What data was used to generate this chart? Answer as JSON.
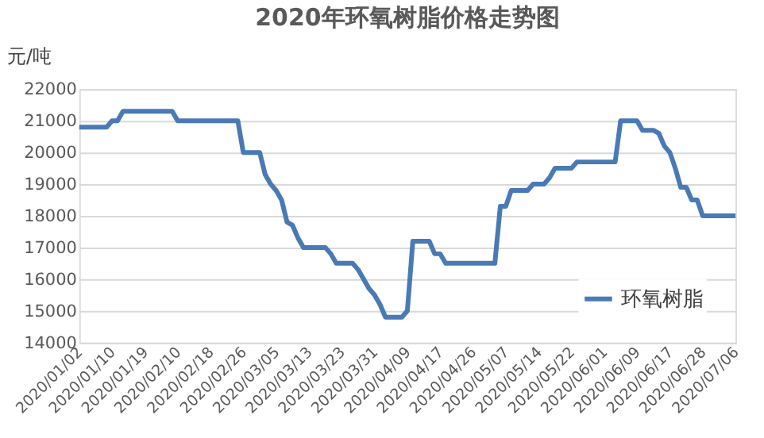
{
  "chart_data": {
    "type": "line",
    "title": "2020年环氧树脂价格走势图",
    "ylabel": "元/吨",
    "categories": [
      "2020/01/02",
      null,
      null,
      null,
      null,
      null,
      "2020/01/10",
      null,
      null,
      null,
      null,
      null,
      "2020/01/19",
      null,
      null,
      null,
      null,
      null,
      "2020/02/10",
      null,
      null,
      null,
      null,
      null,
      "2020/02/18",
      null,
      null,
      null,
      null,
      null,
      "2020/02/26",
      null,
      null,
      null,
      null,
      null,
      "2020/03/05",
      null,
      null,
      null,
      null,
      null,
      "2020/03/13",
      null,
      null,
      null,
      null,
      null,
      "2020/03/23",
      null,
      null,
      null,
      null,
      null,
      "2020/03/31",
      null,
      null,
      null,
      null,
      null,
      "2020/04/09",
      null,
      null,
      null,
      null,
      null,
      "2020/04/17",
      null,
      null,
      null,
      null,
      null,
      "2020/04/26",
      null,
      null,
      null,
      null,
      null,
      "2020/05/07",
      null,
      null,
      null,
      null,
      null,
      "2020/05/14",
      null,
      null,
      null,
      null,
      null,
      "2020/05/22",
      null,
      null,
      null,
      null,
      null,
      "2020/06/01",
      null,
      null,
      null,
      null,
      null,
      "2020/06/09",
      null,
      null,
      null,
      null,
      null,
      "2020/06/17",
      null,
      null,
      null,
      null,
      null,
      "2020/06/28",
      null,
      null,
      null,
      null,
      null,
      "2020/07/06"
    ],
    "series": [
      {
        "name": "环氧树脂",
        "color": "#4a7ab5",
        "values": [
          20800,
          20800,
          20800,
          20800,
          20800,
          20800,
          21000,
          21000,
          21300,
          21300,
          21300,
          21300,
          21300,
          21300,
          21300,
          21300,
          21300,
          21300,
          21000,
          21000,
          21000,
          21000,
          21000,
          21000,
          21000,
          21000,
          21000,
          21000,
          21000,
          21000,
          20000,
          20000,
          20000,
          20000,
          19300,
          19000,
          18800,
          18500,
          17800,
          17700,
          17300,
          17000,
          17000,
          17000,
          17000,
          17000,
          16800,
          16500,
          16500,
          16500,
          16500,
          16300,
          16000,
          15700,
          15500,
          15200,
          14800,
          14800,
          14800,
          14800,
          15000,
          17200,
          17200,
          17200,
          17200,
          16800,
          16800,
          16500,
          16500,
          16500,
          16500,
          16500,
          16500,
          16500,
          16500,
          16500,
          16500,
          18300,
          18300,
          18800,
          18800,
          18800,
          18800,
          19000,
          19000,
          19000,
          19200,
          19500,
          19500,
          19500,
          19500,
          19700,
          19700,
          19700,
          19700,
          19700,
          19700,
          19700,
          19700,
          21000,
          21000,
          21000,
          21000,
          20700,
          20700,
          20700,
          20600,
          20200,
          20000,
          19500,
          18900,
          18900,
          18500,
          18500,
          18000,
          18000,
          18000,
          18000,
          18000,
          18000,
          18000
        ]
      }
    ],
    "ylim": [
      14000,
      22000
    ],
    "yticks": [
      14000,
      15000,
      16000,
      17000,
      18000,
      19000,
      20000,
      21000,
      22000
    ],
    "grid": "y",
    "legend": "bottom right",
    "marker": "none",
    "line_style": "solid"
  }
}
